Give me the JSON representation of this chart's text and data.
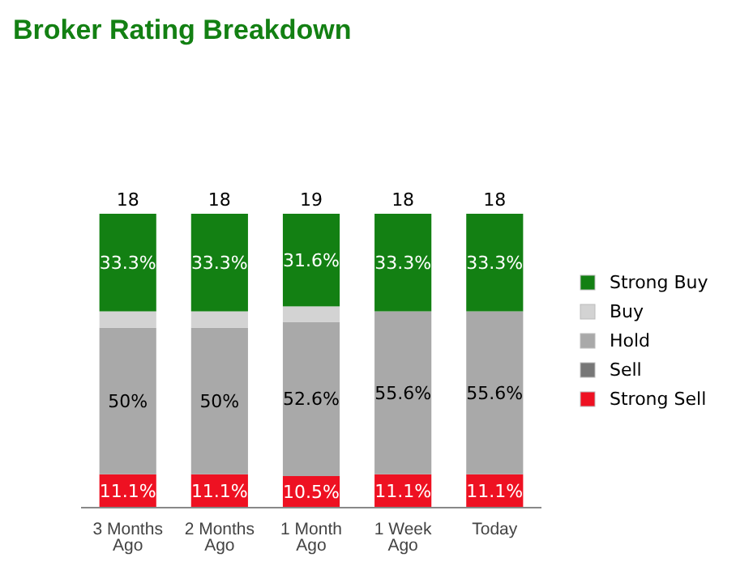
{
  "chart_data": {
    "type": "bar",
    "title": "Broker Rating Breakdown",
    "stacked": true,
    "legend": "right",
    "categories": [
      "3 Months Ago",
      "2 Months Ago",
      "1 Month Ago",
      "1 Week Ago",
      "Today"
    ],
    "series": [
      {
        "name": "Strong Sell",
        "color": "#ee1122",
        "values": [
          11.1,
          11.1,
          10.5,
          11.1,
          11.1
        ],
        "value_labels": [
          "11.1%",
          "11.1%",
          "10.5%",
          "11.1%",
          "11.1%"
        ]
      },
      {
        "name": "Sell",
        "color": "#777777",
        "values": [
          0,
          0,
          0,
          0,
          0
        ]
      },
      {
        "name": "Hold",
        "color": "#a9a9a9",
        "values": [
          50,
          50,
          52.6,
          55.6,
          55.6
        ],
        "value_labels": [
          "50%",
          "50%",
          "52.6%",
          "55.6%",
          "55.6%"
        ]
      },
      {
        "name": "Buy",
        "color": "#d3d3d3",
        "values": [
          5.6,
          5.6,
          5.3,
          0,
          0
        ]
      },
      {
        "name": "Strong Buy",
        "color": "#138013",
        "values": [
          33.3,
          33.3,
          31.6,
          33.3,
          33.3
        ],
        "value_labels": [
          "33.3%",
          "33.3%",
          "31.6%",
          "33.3%",
          "33.3%"
        ]
      }
    ],
    "annotations": [
      {
        "text": "18",
        "x": "3 Months Ago",
        "y": 100
      },
      {
        "text": "18",
        "x": "2 Months Ago",
        "y": 100
      },
      {
        "text": "19",
        "x": "1 Month Ago",
        "y": 100
      },
      {
        "text": "18",
        "x": "1 Week Ago",
        "y": 100
      },
      {
        "text": "18",
        "x": "Today",
        "y": 100
      }
    ]
  }
}
